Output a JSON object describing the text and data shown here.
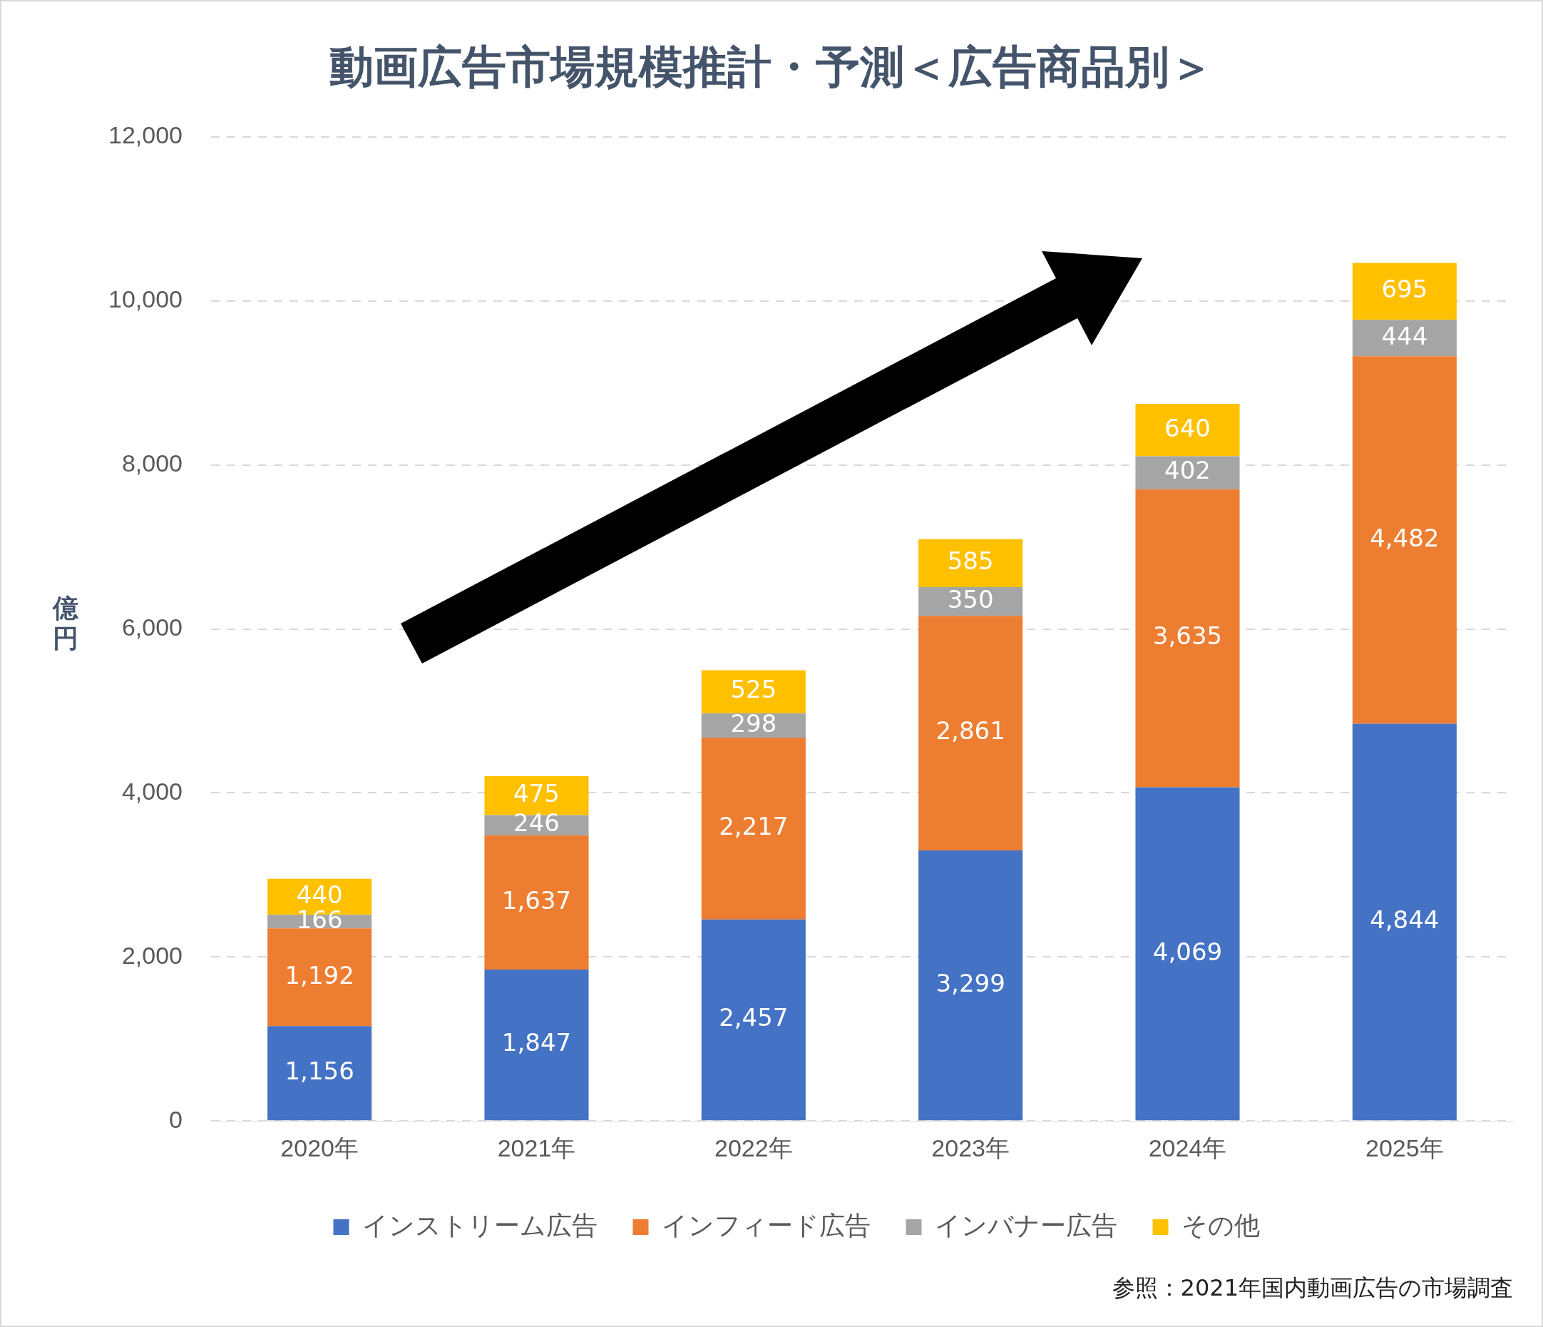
{
  "chart_data": {
    "type": "bar",
    "title": "動画広告市場規模推計・予測＜広告商品別＞",
    "ylabel": "億円",
    "categories": [
      "2020年",
      "2021年",
      "2022年",
      "2023年",
      "2024年",
      "2025年"
    ],
    "series": [
      {
        "name": "インストリーム広告",
        "color": "#4472c4",
        "values": [
          1156,
          1847,
          2457,
          3299,
          4069,
          4844
        ],
        "value_labels": [
          "1,156",
          "1,847",
          "2,457",
          "3,299",
          "4,069",
          "4,844"
        ]
      },
      {
        "name": "インフィード広告",
        "color": "#ed7d31",
        "values": [
          1192,
          1637,
          2217,
          2861,
          3635,
          4482
        ],
        "value_labels": [
          "1,192",
          "1,637",
          "2,217",
          "2,861",
          "3,635",
          "4,482"
        ]
      },
      {
        "name": "インバナー広告",
        "color": "#a5a5a5",
        "values": [
          166,
          246,
          298,
          350,
          402,
          444
        ],
        "value_labels": [
          "166",
          "246",
          "298",
          "350",
          "402",
          "444"
        ]
      },
      {
        "name": "その他",
        "color": "#ffc000",
        "values": [
          440,
          475,
          525,
          585,
          640,
          695
        ],
        "value_labels": [
          "440",
          "475",
          "525",
          "585",
          "640",
          "695"
        ]
      }
    ],
    "stacked": true,
    "ylim": [
      0,
      12000
    ],
    "yticks": [
      0,
      {
        "value": 2000,
        "label": "2,000"
      },
      {
        "value": 4000,
        "label": "4,000"
      },
      {
        "value": 6000,
        "label": "6,000"
      },
      {
        "value": 8000,
        "label": "8,000"
      },
      {
        "value": 10000,
        "label": "10,000"
      },
      {
        "value": 12000,
        "label": "12,000"
      }
    ],
    "grid": "y",
    "legend": "bottom",
    "annotations": [
      "参照：2021年国内動画広告の市場調査"
    ]
  }
}
